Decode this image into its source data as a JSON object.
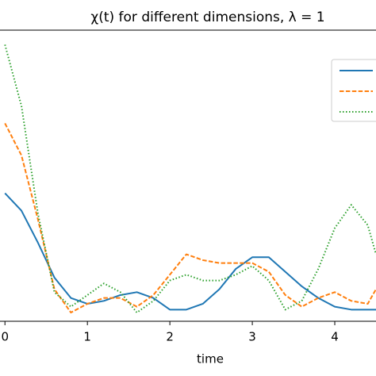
{
  "chart_data": {
    "type": "line",
    "title": "χ(t) for different dimensions, λ = 1",
    "xlabel": "time",
    "x": [
      0,
      0.2,
      0.4,
      0.6,
      0.8,
      1.0,
      1.2,
      1.4,
      1.6,
      1.8,
      2.0,
      2.2,
      2.4,
      2.6,
      2.8,
      3.0,
      3.2,
      3.4,
      3.6,
      3.8,
      4.0,
      4.2,
      4.4,
      4.5
    ],
    "xlim": [
      -0.06,
      4.5
    ],
    "xticks": [
      0,
      1,
      2,
      3,
      4
    ],
    "ylim": [
      0,
      1
    ],
    "legend": "upper right",
    "series": [
      {
        "color": "#1f77b4",
        "linestyle": "solid",
        "values": [
          0.44,
          0.38,
          0.27,
          0.15,
          0.08,
          0.06,
          0.07,
          0.09,
          0.1,
          0.08,
          0.04,
          0.04,
          0.06,
          0.11,
          0.18,
          0.22,
          0.22,
          0.17,
          0.12,
          0.08,
          0.05,
          0.04,
          0.04,
          0.04
        ]
      },
      {
        "color": "#ff7f0e",
        "linestyle": "dashed",
        "values": [
          0.68,
          0.57,
          0.35,
          0.11,
          0.03,
          0.06,
          0.08,
          0.08,
          0.05,
          0.09,
          0.16,
          0.23,
          0.21,
          0.2,
          0.2,
          0.2,
          0.17,
          0.09,
          0.05,
          0.08,
          0.1,
          0.07,
          0.06,
          0.11
        ]
      },
      {
        "color": "#2ca02c",
        "linestyle": "dotted",
        "values": [
          0.95,
          0.74,
          0.37,
          0.1,
          0.05,
          0.09,
          0.13,
          0.1,
          0.03,
          0.07,
          0.14,
          0.16,
          0.14,
          0.14,
          0.16,
          0.19,
          0.14,
          0.04,
          0.07,
          0.18,
          0.32,
          0.4,
          0.33,
          0.23
        ]
      }
    ]
  }
}
